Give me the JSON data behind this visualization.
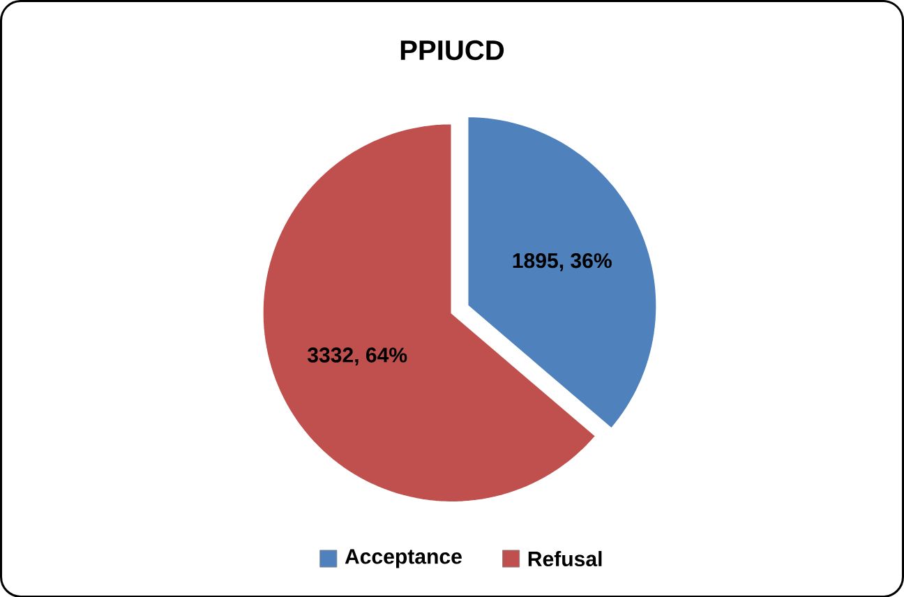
{
  "chart_data": {
    "type": "pie",
    "title": "PPIUCD",
    "categories": [
      "Acceptance",
      "Refusal"
    ],
    "values": [
      1895,
      3332
    ],
    "colors": [
      "#4f81bd",
      "#c0504d"
    ],
    "value_labels": [
      "1895, 36%",
      "3332, 64%"
    ],
    "legend": "bottom"
  }
}
